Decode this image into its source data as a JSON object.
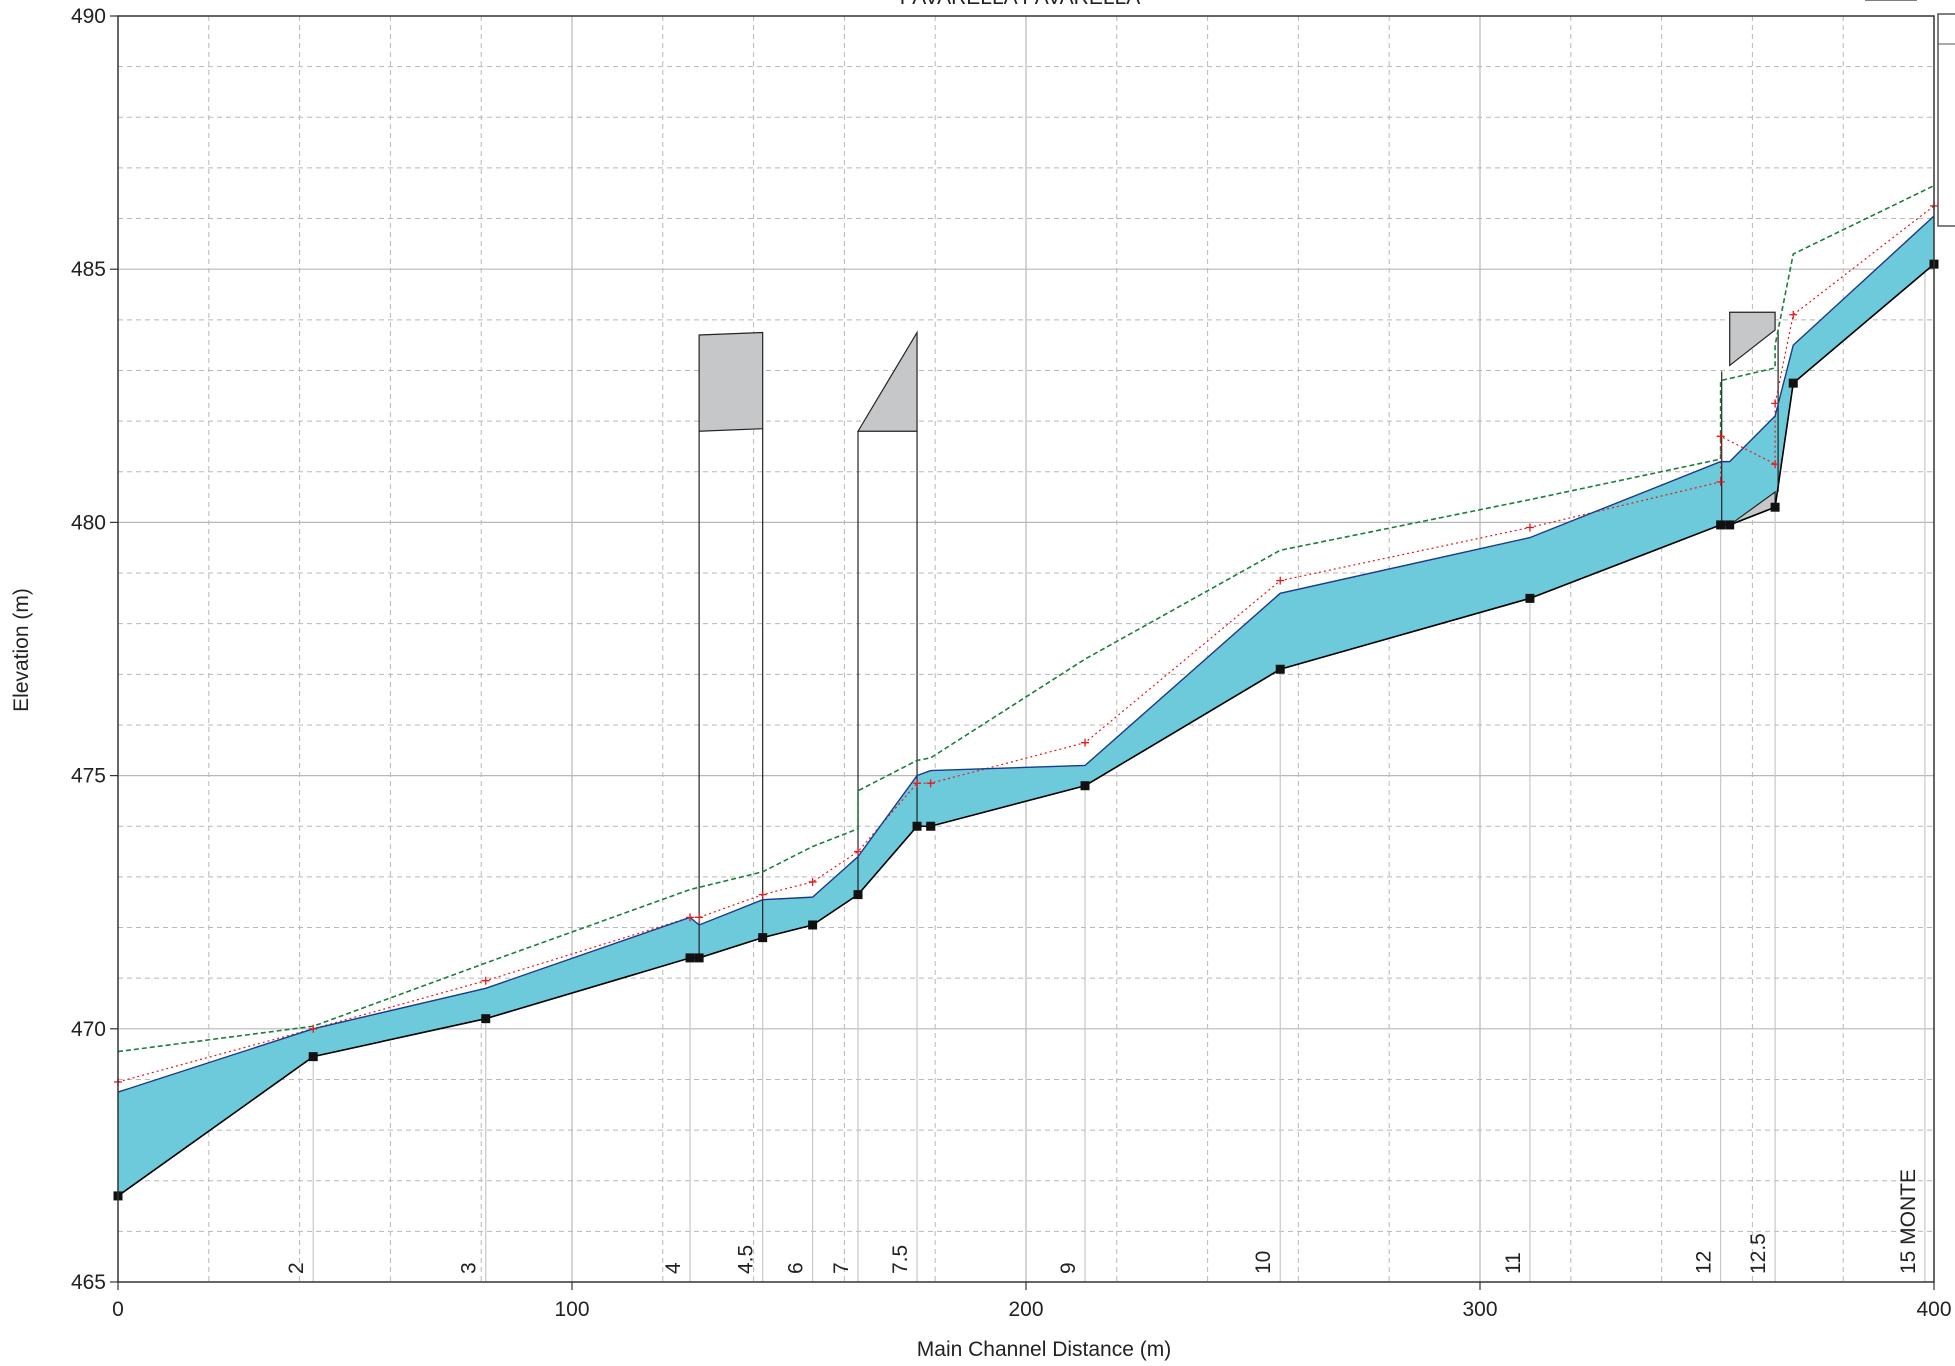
{
  "chart_data": {
    "type": "area",
    "title": "PAVARELLA PAVARELLA",
    "xlabel": "Main Channel Distance (m)",
    "ylabel": "Elevation (m)",
    "xlim": [
      0,
      400
    ],
    "ylim": [
      465,
      490
    ],
    "x_ticks": [
      0,
      100,
      200,
      300,
      400
    ],
    "y_ticks": [
      465,
      470,
      475,
      480,
      485,
      490
    ],
    "grid": true,
    "colors": {
      "water": "#6ccadb",
      "water_edge": "#1d3a8a",
      "ground": "#000000",
      "structure": "#c6c7c9",
      "energy_grade": "#1a7f3a",
      "critical": "#e31a1c",
      "grid": "#b8b8b8",
      "station_line": "#c8c8c8"
    },
    "series": [
      {
        "kind": "ground",
        "x": [
          0,
          43,
          81,
          126,
          128,
          142,
          153,
          163,
          176,
          179,
          213,
          256,
          311,
          353,
          355,
          365,
          369,
          400
        ],
        "values": [
          466.7,
          469.45,
          470.2,
          471.4,
          471.4,
          471.8,
          472.05,
          472.65,
          474.0,
          474.0,
          474.8,
          477.1,
          478.5,
          479.95,
          479.95,
          480.3,
          482.75,
          485.1
        ]
      },
      {
        "kind": "water_surface",
        "x": [
          0,
          43,
          81,
          126,
          128,
          142,
          153,
          163,
          176,
          179,
          213,
          256,
          311,
          353,
          355,
          365,
          369,
          400
        ],
        "values": [
          468.75,
          470.0,
          470.8,
          472.2,
          472.05,
          472.55,
          472.6,
          473.4,
          475.0,
          475.1,
          475.2,
          478.6,
          479.7,
          481.2,
          481.2,
          482.1,
          483.5,
          486.05
        ]
      },
      {
        "kind": "energy_grade",
        "x": [
          0,
          43,
          81,
          126,
          142,
          153,
          163,
          163,
          176,
          179,
          213,
          256,
          311,
          353,
          353,
          365,
          365,
          369,
          400
        ],
        "values": [
          469.55,
          470.05,
          471.3,
          472.75,
          473.1,
          473.6,
          473.95,
          474.7,
          475.3,
          475.35,
          477.3,
          479.45,
          480.45,
          481.25,
          482.8,
          483.05,
          483.5,
          485.3,
          486.65
        ]
      },
      {
        "kind": "critical",
        "x": [
          0,
          43,
          81,
          126,
          128,
          142,
          153,
          163,
          176,
          179,
          213,
          256,
          311,
          353,
          353,
          365,
          365,
          369,
          400
        ],
        "values": [
          468.95,
          470.0,
          470.95,
          472.2,
          472.2,
          472.65,
          472.9,
          473.5,
          474.85,
          474.85,
          475.65,
          478.85,
          479.9,
          480.8,
          481.7,
          481.15,
          482.35,
          484.1,
          486.25
        ]
      }
    ],
    "structures": [
      {
        "shape": "box",
        "x": [
          128,
          142
        ],
        "low_chord": [
          481.8,
          481.85
        ],
        "high_chord": [
          483.7,
          483.75
        ]
      },
      {
        "shape": "wedge",
        "x": [
          163,
          176
        ],
        "low_chord": [
          481.8,
          481.8
        ],
        "high_chord": [
          481.8,
          483.75
        ]
      },
      {
        "shape": "weir",
        "x": [
          355,
          365
        ],
        "low_chord": [
          483.1,
          483.8
        ],
        "high_chord": [
          484.15,
          484.15
        ],
        "crest": [
          479.95,
          480.6
        ]
      }
    ],
    "stations": [
      {
        "label": "2",
        "x": 43
      },
      {
        "label": "3",
        "x": 81
      },
      {
        "label": "4",
        "x": 126
      },
      {
        "label": "4.5",
        "x": 142
      },
      {
        "label": "6",
        "x": 153
      },
      {
        "label": "7",
        "x": 163
      },
      {
        "label": "7.5",
        "x": 176
      },
      {
        "label": "9",
        "x": 213
      },
      {
        "label": "10",
        "x": 256
      },
      {
        "label": "11",
        "x": 311
      },
      {
        "label": "12",
        "x": 353
      },
      {
        "label": "12.5",
        "x": 365
      },
      {
        "label": "15 MONTE",
        "x": 398
      }
    ]
  }
}
